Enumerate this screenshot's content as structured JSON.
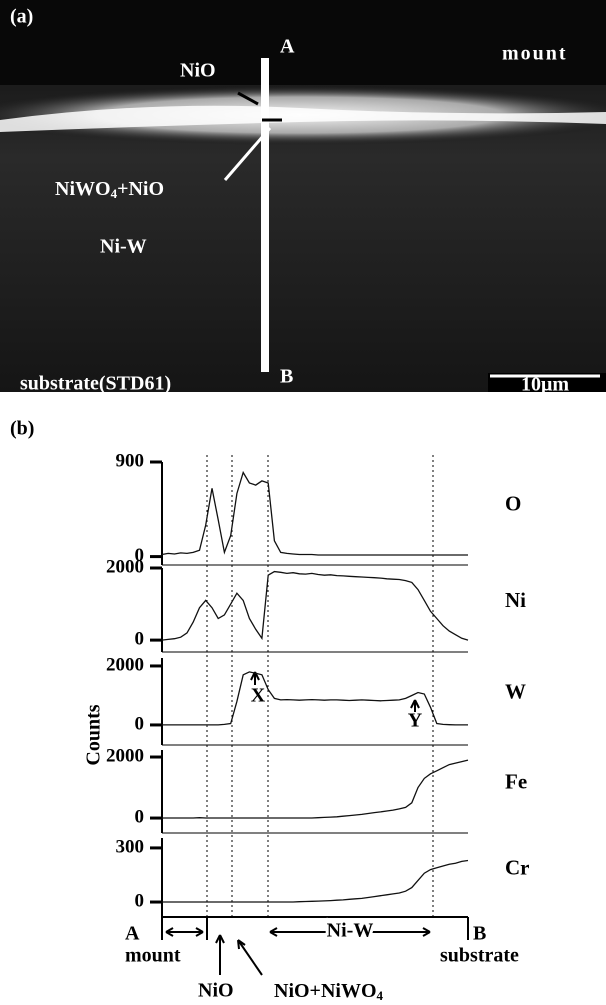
{
  "panel_a": {
    "label": "(a)",
    "point_a": "A",
    "point_b": "B",
    "nio": "NiO",
    "mount": "mount",
    "oxide_pre": "NiWO",
    "oxide_sub": "4",
    "oxide_post": "+NiO",
    "alloy": "Ni-W",
    "substrate": "substrate(STD61)",
    "scale": "10μm"
  },
  "panel_b": {
    "label": "(b)",
    "y_label": "Counts",
    "start": "A",
    "end": "B",
    "mount": "mount",
    "nio": "NiO",
    "mixed_pre": "NiO+NiWO",
    "mixed_sub": "4",
    "alloy": "Ni-W",
    "substrate": "substrate",
    "marker_x": "X",
    "marker_y": "Y"
  },
  "chart_data": [
    {
      "type": "line",
      "title": "O",
      "color": "#111111",
      "ylim": [
        -80,
        900
      ],
      "yticks": [
        0,
        900
      ],
      "values": [
        20,
        30,
        25,
        35,
        30,
        40,
        60,
        300,
        650,
        350,
        40,
        200,
        600,
        800,
        700,
        680,
        720,
        700,
        150,
        40,
        30,
        25,
        20,
        20,
        20,
        15,
        15,
        15,
        15,
        15,
        15,
        15,
        15,
        15,
        15,
        15,
        15,
        15,
        15,
        15,
        15,
        15,
        15,
        15,
        15,
        15,
        15,
        15,
        15,
        15
      ]
    },
    {
      "type": "line",
      "title": "Ni",
      "color": "#111111",
      "ylim": [
        -330,
        2000
      ],
      "yticks": [
        0,
        2000
      ],
      "values": [
        0,
        20,
        40,
        80,
        200,
        500,
        900,
        1100,
        900,
        600,
        700,
        1000,
        1300,
        1100,
        600,
        300,
        50,
        1800,
        1900,
        1880,
        1850,
        1870,
        1840,
        1830,
        1850,
        1820,
        1800,
        1810,
        1790,
        1780,
        1770,
        1760,
        1750,
        1740,
        1730,
        1720,
        1700,
        1690,
        1680,
        1650,
        1600,
        1400,
        1100,
        800,
        600,
        400,
        250,
        150,
        50,
        0
      ]
    },
    {
      "type": "line",
      "title": "W",
      "color": "#111111",
      "ylim": [
        -680,
        2270
      ],
      "yticks": [
        0,
        2000
      ],
      "values": [
        0,
        0,
        0,
        0,
        0,
        0,
        0,
        0,
        0,
        0,
        20,
        50,
        800,
        1700,
        1800,
        1750,
        1700,
        1200,
        900,
        850,
        860,
        850,
        840,
        850,
        860,
        850,
        840,
        850,
        850,
        840,
        830,
        840,
        850,
        840,
        830,
        820,
        830,
        840,
        850,
        900,
        1000,
        1100,
        1050,
        600,
        50,
        20,
        10,
        0,
        0,
        0
      ]
    },
    {
      "type": "line",
      "title": "Fe",
      "color": "#111111",
      "ylim": [
        -490,
        2230
      ],
      "yticks": [
        0,
        2000
      ],
      "values": [
        0,
        0,
        0,
        0,
        0,
        0,
        10,
        0,
        0,
        0,
        0,
        0,
        0,
        0,
        0,
        0,
        0,
        0,
        0,
        0,
        0,
        0,
        0,
        0,
        0,
        10,
        20,
        30,
        40,
        60,
        80,
        100,
        120,
        150,
        180,
        200,
        230,
        260,
        300,
        350,
        500,
        1000,
        1300,
        1450,
        1550,
        1650,
        1750,
        1800,
        1850,
        1900
      ]
    },
    {
      "type": "line",
      "title": "Cr",
      "color": "#111111",
      "ylim": [
        -83,
        355
      ],
      "yticks": [
        0,
        300
      ],
      "values": [
        0,
        0,
        0,
        0,
        0,
        0,
        0,
        0,
        0,
        0,
        0,
        0,
        0,
        0,
        0,
        0,
        0,
        0,
        0,
        0,
        0,
        0,
        2,
        3,
        4,
        5,
        6,
        8,
        10,
        12,
        15,
        18,
        20,
        25,
        30,
        35,
        40,
        45,
        50,
        60,
        80,
        120,
        160,
        180,
        190,
        200,
        210,
        215,
        225,
        230
      ]
    }
  ]
}
